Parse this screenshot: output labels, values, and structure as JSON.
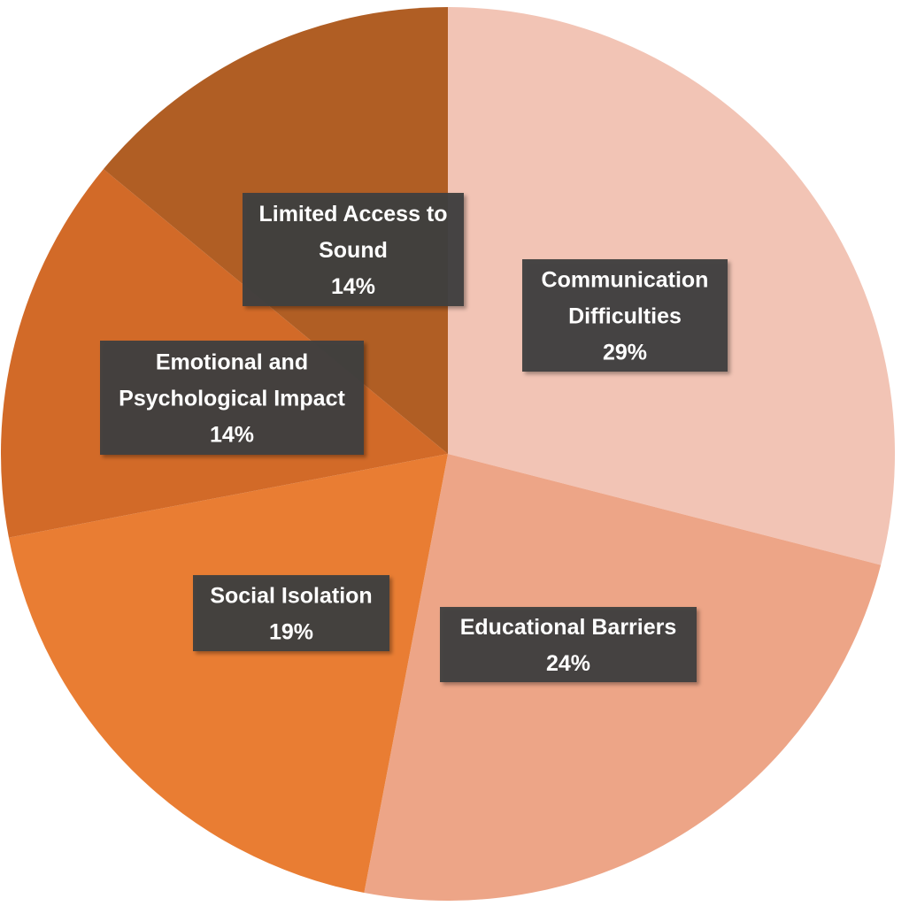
{
  "chart_data": {
    "type": "pie",
    "title": "",
    "slices": [
      {
        "label": "Communication Difficulties",
        "lines": [
          "Communication",
          "Difficulties"
        ],
        "value": 29,
        "value_label": "29%",
        "color": "#f2c4b5"
      },
      {
        "label": "Educational Barriers",
        "lines": [
          "Educational Barriers"
        ],
        "value": 24,
        "value_label": "24%",
        "color": "#eda587"
      },
      {
        "label": "Social Isolation",
        "lines": [
          "Social Isolation"
        ],
        "value": 19,
        "value_label": "19%",
        "color": "#e97d33"
      },
      {
        "label": "Emotional and Psychological Impact",
        "lines": [
          "Emotional and",
          "Psychological Impact"
        ],
        "value": 14,
        "value_label": "14%",
        "color": "#d26a28"
      },
      {
        "label": "Limited Access to Sound",
        "lines": [
          "Limited Access to",
          "Sound"
        ],
        "value": 14,
        "value_label": "14%",
        "color": "#b05e24"
      }
    ],
    "start_angle": "12 o'clock",
    "direction": "clockwise",
    "legend": "none",
    "data_labels": "category and percentage in dark boxes"
  }
}
